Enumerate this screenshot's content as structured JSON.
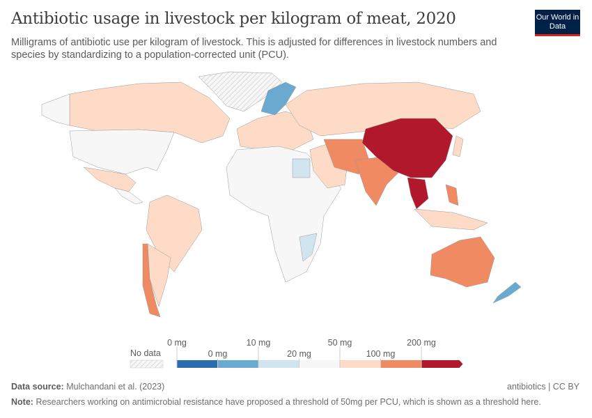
{
  "header": {
    "title": "Antibiotic usage in livestock per kilogram of meat, 2020",
    "subtitle": "Milligrams of antibiotic use per kilogram of livestock. This is adjusted for differences in livestock numbers and species by standardizing to a population-corrected unit (PCU).",
    "logo": "Our World in Data"
  },
  "legend": {
    "no_data": "No data",
    "upper_labels": [
      "0 mg",
      "10 mg",
      "50 mg",
      "200 mg"
    ],
    "lower_labels": [
      "0 mg",
      "20 mg",
      "100 mg"
    ],
    "colors": [
      "#2c6db2",
      "#6aa9d0",
      "#d1e5f0",
      "#f7f7f7",
      "#fddbc7",
      "#ef8a62",
      "#b2182b"
    ]
  },
  "map": {
    "bins": {
      "no_data": [
        "Greenland",
        "Western Sahara"
      ],
      "0-10": [
        "Sweden",
        "Norway",
        "New Zealand"
      ],
      "10-20": [
        "Egypt",
        "Mozambique",
        "Ireland",
        "Senegal"
      ],
      "20-50": [
        "United States",
        "Africa (most)",
        "Iceland"
      ],
      "50-100": [
        "Canada",
        "Russia",
        "Brazil",
        "Argentina",
        "Europe (most)",
        "Indonesia",
        "Turkey",
        "Saudi Arabia"
      ],
      "100-200": [
        "India",
        "Iran",
        "Pakistan",
        "Australia",
        "Chile",
        "Philippines"
      ],
      "200+": [
        "China",
        "Thailand",
        "Vietnam",
        "Myanmar"
      ]
    }
  },
  "footer": {
    "source_label": "Data source:",
    "source": "Mulchandani et al. (2023)",
    "license": "antibiotics | CC BY",
    "note_label": "Note:",
    "note": "Researchers working on antimicrobial resistance have proposed a threshold of 50mg per PCU, which is shown as a threshold here."
  }
}
